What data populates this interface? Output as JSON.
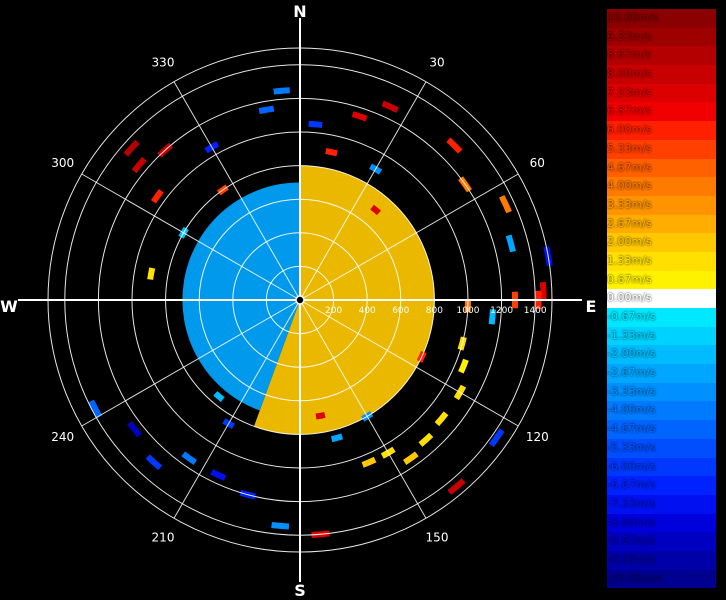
{
  "chart_data": {
    "type": "polar-radar",
    "cardinals": {
      "n": "N",
      "e": "E",
      "s": "S",
      "w": "W"
    },
    "bearings": [
      "30",
      "60",
      "120",
      "150",
      "210",
      "240",
      "300",
      "330"
    ],
    "range_ticks": [
      "200",
      "400",
      "600",
      "800",
      "1000",
      "1200",
      "1400"
    ],
    "range_max": 1500,
    "legend": [
      {
        "label": "10.00m/s",
        "value": 10.0,
        "color": "#8B0000"
      },
      {
        "label": "9.33m/s",
        "value": 9.33,
        "color": "#9E0000"
      },
      {
        "label": "8.67m/s",
        "value": 8.67,
        "color": "#B40000"
      },
      {
        "label": "8.00m/s",
        "value": 8.0,
        "color": "#C80000"
      },
      {
        "label": "7.33m/s",
        "value": 7.33,
        "color": "#DC0000"
      },
      {
        "label": "6.87m/s",
        "value": 6.87,
        "color": "#F00000"
      },
      {
        "label": "6.00m/s",
        "value": 6.0,
        "color": "#FF2000"
      },
      {
        "label": "5.33m/s",
        "value": 5.33,
        "color": "#FF4000"
      },
      {
        "label": "4.67m/s",
        "value": 4.67,
        "color": "#FF6000"
      },
      {
        "label": "4.00m/s",
        "value": 4.0,
        "color": "#FF7A00"
      },
      {
        "label": "3.33m/s",
        "value": 3.33,
        "color": "#FF9400"
      },
      {
        "label": "2.67m/s",
        "value": 2.67,
        "color": "#FFAE00"
      },
      {
        "label": "2.00m/s",
        "value": 2.0,
        "color": "#FFC800"
      },
      {
        "label": "1.33m/s",
        "value": 1.33,
        "color": "#FFE000"
      },
      {
        "label": "0.67m/s",
        "value": 0.67,
        "color": "#FFF200"
      },
      {
        "label": "0.00m/s",
        "value": 0.0,
        "color": "#FFFFFF"
      },
      {
        "label": "-0.67m/s",
        "value": -0.67,
        "color": "#00E8FF"
      },
      {
        "label": "-1.33m/s",
        "value": -1.33,
        "color": "#00D2FF"
      },
      {
        "label": "-2.00m/s",
        "value": -2.0,
        "color": "#00BCFF"
      },
      {
        "label": "-2.67m/s",
        "value": -2.67,
        "color": "#00A6FF"
      },
      {
        "label": "-3.33m/s",
        "value": -3.33,
        "color": "#0090FF"
      },
      {
        "label": "-4.00m/s",
        "value": -4.0,
        "color": "#007AFF"
      },
      {
        "label": "-4.67m/s",
        "value": -4.67,
        "color": "#0064FF"
      },
      {
        "label": "-5.33m/s",
        "value": -5.33,
        "color": "#004EFF"
      },
      {
        "label": "-6.00m/s",
        "value": -6.0,
        "color": "#0038FF"
      },
      {
        "label": "-6.67m/s",
        "value": -6.67,
        "color": "#0022FF"
      },
      {
        "label": "-7.33m/s",
        "value": -7.33,
        "color": "#0010F0"
      },
      {
        "label": "-8.00m/s",
        "value": -8.0,
        "color": "#0000DC"
      },
      {
        "label": "-8.67m/s",
        "value": -8.67,
        "color": "#0000C0"
      },
      {
        "label": "-9.33m/s",
        "value": -9.33,
        "color": "#0000A8"
      },
      {
        "label": "-10.00m/s",
        "value": -10.0,
        "color": "#000090"
      }
    ],
    "fill_regions": [
      {
        "name": "receding-lobe",
        "az_from": 0,
        "az_to": 200,
        "r_from": 0,
        "r_to": 800,
        "value": 2.3
      },
      {
        "name": "approaching-lobe",
        "az_from": 200,
        "az_to": 360,
        "r_from": 0,
        "r_to": 700,
        "value": -2.6
      }
    ],
    "echoes": [
      {
        "az": 25,
        "r": 1270,
        "value": 8.0
      },
      {
        "az": 45,
        "r": 1300,
        "value": 6.0
      },
      {
        "az": 55,
        "r": 1200,
        "value": 4.0
      },
      {
        "az": 65,
        "r": 1350,
        "value": 4.0
      },
      {
        "az": 75,
        "r": 1300,
        "value": -2.67
      },
      {
        "az": 80,
        "r": 1500,
        "value": -7.33
      },
      {
        "az": 88,
        "r": 1450,
        "value": 7.33
      },
      {
        "az": 90,
        "r": 1280,
        "value": 5.33
      },
      {
        "az": 90,
        "r": 1420,
        "value": 6.0
      },
      {
        "az": 92,
        "r": 1000,
        "value": 4.0
      },
      {
        "az": 95,
        "r": 1150,
        "value": -2.0
      },
      {
        "az": 105,
        "r": 1000,
        "value": 1.33
      },
      {
        "az": 112,
        "r": 1050,
        "value": 0.67
      },
      {
        "az": 120,
        "r": 1100,
        "value": 1.33
      },
      {
        "az": 130,
        "r": 1100,
        "value": 1.33
      },
      {
        "az": 138,
        "r": 1120,
        "value": 1.33
      },
      {
        "az": 145,
        "r": 1150,
        "value": 2.0
      },
      {
        "az": 150,
        "r": 1050,
        "value": 1.33
      },
      {
        "az": 157,
        "r": 1050,
        "value": 2.0
      },
      {
        "az": 125,
        "r": 1430,
        "value": -6.0
      },
      {
        "az": 140,
        "r": 1450,
        "value": 8.0
      },
      {
        "az": 175,
        "r": 1400,
        "value": 7.33
      },
      {
        "az": 185,
        "r": 1350,
        "value": -3.33
      },
      {
        "az": 195,
        "r": 1200,
        "value": -6.67
      },
      {
        "az": 205,
        "r": 1150,
        "value": -7.33
      },
      {
        "az": 215,
        "r": 1150,
        "value": -4.0
      },
      {
        "az": 222,
        "r": 1300,
        "value": -6.0
      },
      {
        "az": 232,
        "r": 1250,
        "value": -8.67
      },
      {
        "az": 242,
        "r": 1380,
        "value": -4.67
      },
      {
        "az": 210,
        "r": 850,
        "value": -6.0
      },
      {
        "az": 220,
        "r": 750,
        "value": -2.0
      },
      {
        "az": 280,
        "r": 900,
        "value": 1.33
      },
      {
        "az": 300,
        "r": 800,
        "value": -2.0
      },
      {
        "az": 306,
        "r": 1050,
        "value": 6.0
      },
      {
        "az": 310,
        "r": 1250,
        "value": 8.0
      },
      {
        "az": 312,
        "r": 1350,
        "value": 8.67
      },
      {
        "az": 318,
        "r": 1200,
        "value": 8.0
      },
      {
        "az": 325,
        "r": 800,
        "value": 5.33
      },
      {
        "az": 330,
        "r": 1050,
        "value": -6.67
      },
      {
        "az": 350,
        "r": 1150,
        "value": -4.67
      },
      {
        "az": 355,
        "r": 1250,
        "value": -4.0
      },
      {
        "az": 5,
        "r": 1050,
        "value": -6.0
      },
      {
        "az": 12,
        "r": 900,
        "value": 6.0
      },
      {
        "az": 18,
        "r": 1150,
        "value": 7.33
      },
      {
        "az": 30,
        "r": 900,
        "value": -3.33
      },
      {
        "az": 40,
        "r": 700,
        "value": 7.33
      },
      {
        "az": 115,
        "r": 800,
        "value": 6.0
      },
      {
        "az": 150,
        "r": 800,
        "value": -3.33
      },
      {
        "az": 165,
        "r": 850,
        "value": -2.67
      },
      {
        "az": 170,
        "r": 700,
        "value": 7.33
      }
    ]
  }
}
